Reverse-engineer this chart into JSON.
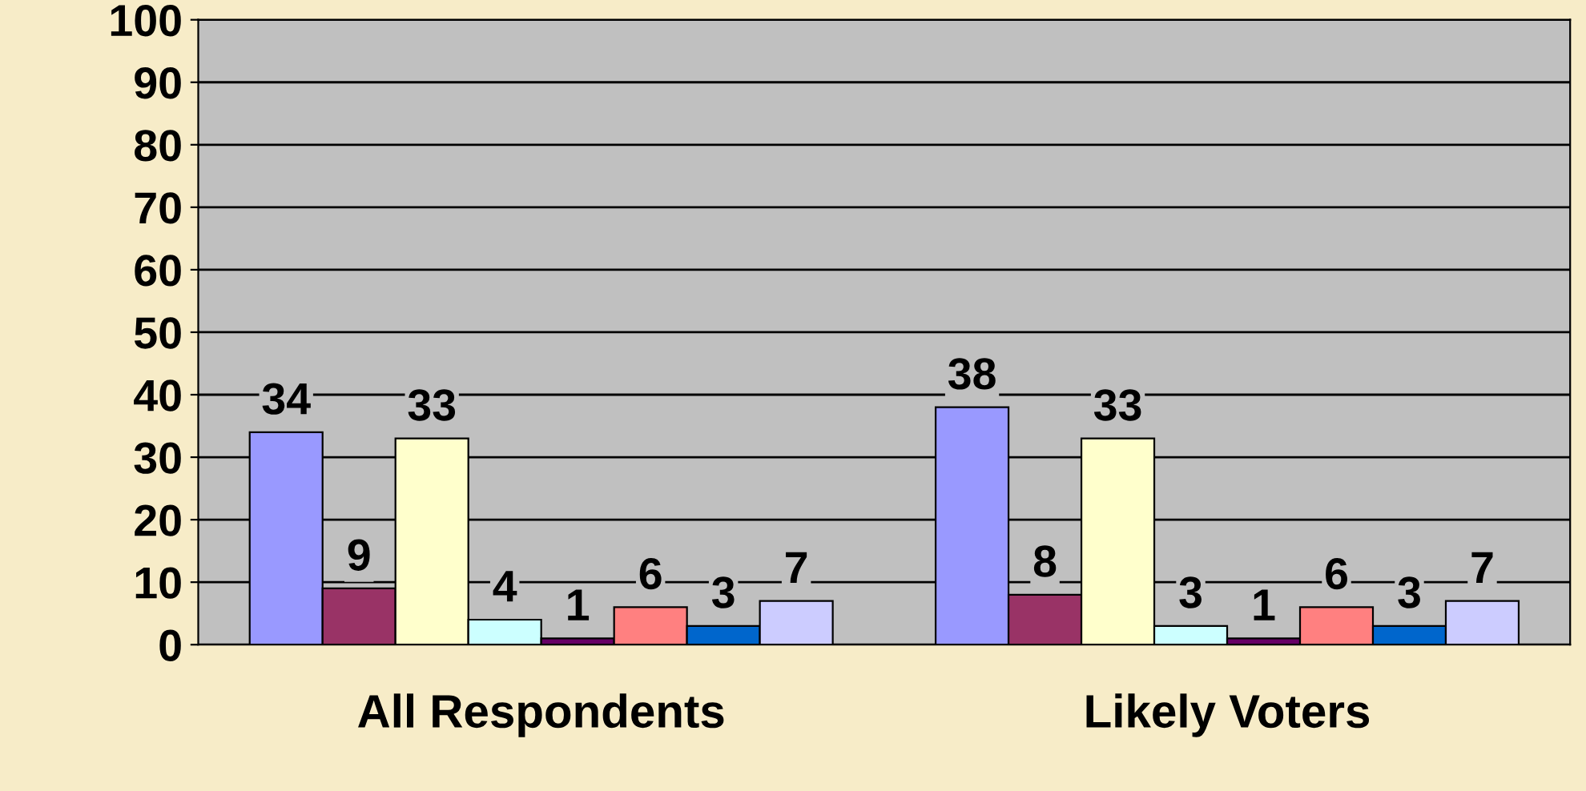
{
  "chart_data": {
    "type": "bar",
    "categories": [
      "All Respondents",
      "Likely Voters"
    ],
    "series": [
      {
        "color": "#9999ff",
        "values": [
          34,
          38
        ]
      },
      {
        "color": "#993366",
        "values": [
          9,
          8
        ]
      },
      {
        "color": "#ffffcc",
        "values": [
          33,
          33
        ]
      },
      {
        "color": "#ccffff",
        "values": [
          4,
          3
        ]
      },
      {
        "color": "#660066",
        "values": [
          1,
          1
        ]
      },
      {
        "color": "#ff8080",
        "values": [
          6,
          6
        ]
      },
      {
        "color": "#0066cc",
        "values": [
          3,
          3
        ]
      },
      {
        "color": "#ccccff",
        "values": [
          7,
          7
        ]
      }
    ],
    "ylim": [
      0,
      100
    ],
    "yticks": [
      0,
      10,
      20,
      30,
      40,
      50,
      60,
      70,
      80,
      90,
      100
    ],
    "grid": "y",
    "data_labels": true
  }
}
